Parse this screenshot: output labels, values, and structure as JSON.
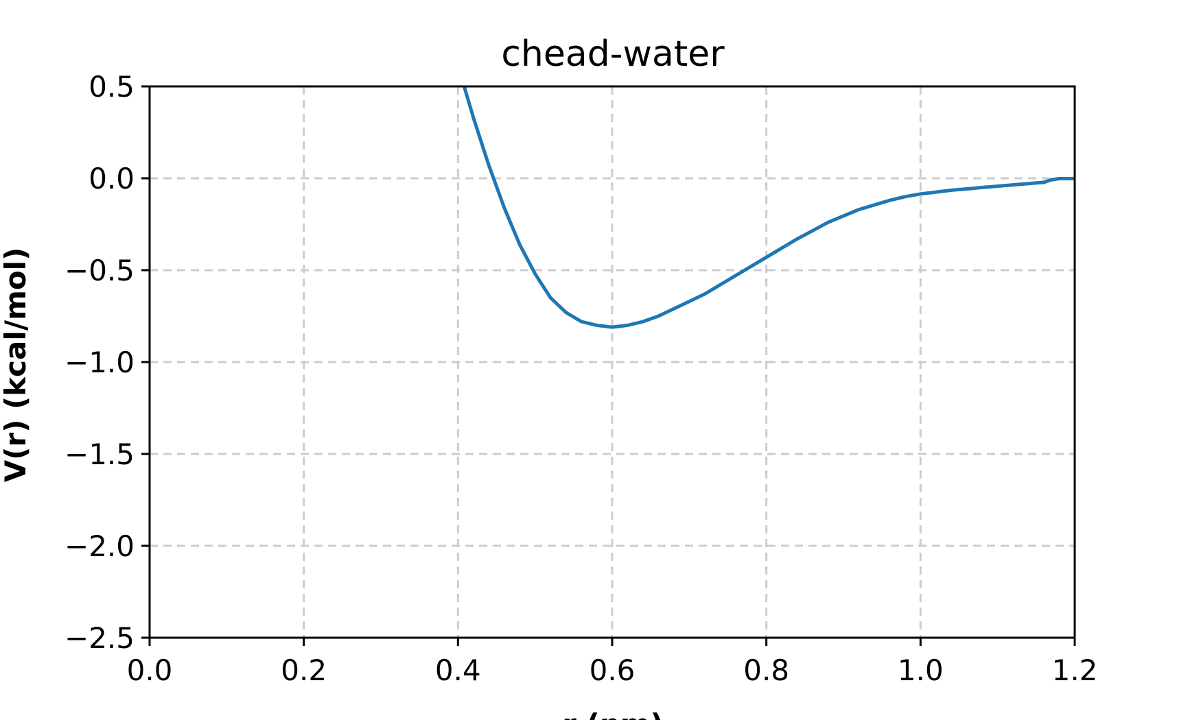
{
  "chart_data": {
    "type": "line",
    "title": "chead-water",
    "xlabel": "r (nm)",
    "ylabel": "V(r) (kcal/mol)",
    "xlim": [
      0.0,
      1.2
    ],
    "ylim": [
      -2.5,
      0.5
    ],
    "xticks": [
      0.0,
      0.2,
      0.4,
      0.6,
      0.8,
      1.0,
      1.2
    ],
    "yticks": [
      0.5,
      0.0,
      -0.5,
      -1.0,
      -1.5,
      -2.0,
      -2.5
    ],
    "xtick_labels": [
      "0.0",
      "0.2",
      "0.4",
      "0.6",
      "0.8",
      "1.0",
      "1.2"
    ],
    "ytick_labels": [
      "0.5",
      "0.0",
      "−0.5",
      "−1.0",
      "−1.5",
      "−2.0",
      "−2.5"
    ],
    "grid": true,
    "series": [
      {
        "color": "#1f77b4",
        "x": [
          0.408,
          0.42,
          0.44,
          0.46,
          0.48,
          0.5,
          0.52,
          0.54,
          0.56,
          0.58,
          0.6,
          0.62,
          0.64,
          0.66,
          0.68,
          0.7,
          0.72,
          0.74,
          0.76,
          0.78,
          0.8,
          0.82,
          0.84,
          0.86,
          0.88,
          0.9,
          0.92,
          0.94,
          0.96,
          0.98,
          1.0,
          1.02,
          1.04,
          1.06,
          1.08,
          1.1,
          1.12,
          1.14,
          1.16,
          1.17,
          1.18,
          1.2
        ],
        "y": [
          0.5,
          0.33,
          0.07,
          -0.16,
          -0.36,
          -0.52,
          -0.65,
          -0.73,
          -0.78,
          -0.8,
          -0.81,
          -0.8,
          -0.78,
          -0.75,
          -0.71,
          -0.67,
          -0.63,
          -0.58,
          -0.53,
          -0.48,
          -0.43,
          -0.38,
          -0.33,
          -0.285,
          -0.24,
          -0.205,
          -0.17,
          -0.145,
          -0.12,
          -0.1,
          -0.085,
          -0.075,
          -0.065,
          -0.058,
          -0.05,
          -0.043,
          -0.036,
          -0.029,
          -0.022,
          -0.008,
          -0.002,
          -0.002
        ]
      }
    ]
  }
}
